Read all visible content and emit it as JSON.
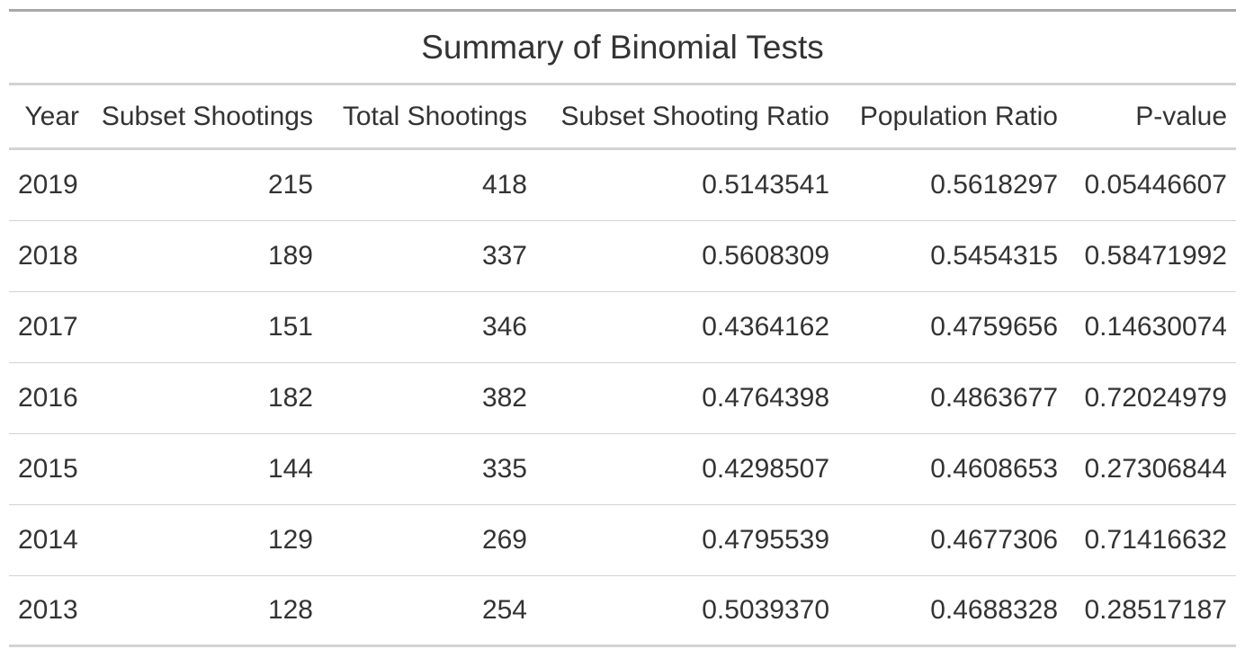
{
  "table": {
    "title": "Summary of Binomial Tests",
    "columns": [
      "Year",
      "Subset Shootings",
      "Total Shootings",
      "Subset Shooting Ratio",
      "Population Ratio",
      "P-value"
    ],
    "rows": [
      [
        "2019",
        "215",
        "418",
        "0.5143541",
        "0.5618297",
        "0.05446607"
      ],
      [
        "2018",
        "189",
        "337",
        "0.5608309",
        "0.5454315",
        "0.58471992"
      ],
      [
        "2017",
        "151",
        "346",
        "0.4364162",
        "0.4759656",
        "0.14630074"
      ],
      [
        "2016",
        "182",
        "382",
        "0.4764398",
        "0.4863677",
        "0.72024979"
      ],
      [
        "2015",
        "144",
        "335",
        "0.4298507",
        "0.4608653",
        "0.27306844"
      ],
      [
        "2014",
        "129",
        "269",
        "0.4795539",
        "0.4677306",
        "0.71416632"
      ],
      [
        "2013",
        "128",
        "254",
        "0.5039370",
        "0.4688328",
        "0.28517187"
      ]
    ]
  }
}
